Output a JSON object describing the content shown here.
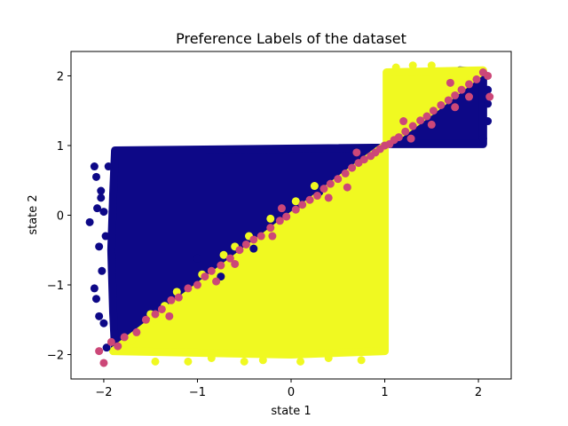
{
  "chart_data": {
    "type": "scatter",
    "title": "Preference Labels of the dataset",
    "xlabel": "state 1",
    "ylabel": "state 2",
    "xlim": [
      -2.35,
      2.35
    ],
    "ylim": [
      -2.35,
      2.35
    ],
    "xticks": [
      -2,
      -1,
      0,
      1,
      2
    ],
    "yticks": [
      -2,
      -1,
      0,
      1,
      2
    ],
    "grid": false,
    "legend": "none",
    "series": [
      {
        "color": "#0d0887",
        "regions": [
          {
            "shape": "polygon",
            "vertices": [
              [
                -1.88,
                0.93
              ],
              [
                1.0,
                0.97
              ],
              [
                1.0,
                1.0
              ],
              [
                -1.88,
                -1.92
              ],
              [
                -1.9,
                -1.4
              ],
              [
                -1.92,
                -0.5
              ],
              [
                -1.9,
                0.3
              ]
            ]
          },
          {
            "shape": "polygon",
            "vertices": [
              [
                1.02,
                1.02
              ],
              [
                2.05,
                1.02
              ],
              [
                2.05,
                2.05
              ],
              [
                1.8,
                2.08
              ]
            ]
          }
        ],
        "points": [
          [
            -2.15,
            -0.1
          ],
          [
            -2.08,
            0.55
          ],
          [
            -2.1,
            -1.05
          ],
          [
            -2.05,
            -0.45
          ],
          [
            -2.07,
            0.1
          ],
          [
            -2.0,
            -1.55
          ],
          [
            -2.03,
            0.35
          ],
          [
            -2.1,
            0.7
          ],
          [
            -2.02,
            -0.8
          ],
          [
            -2.08,
            -1.2
          ],
          [
            -1.97,
            -1.9
          ],
          [
            -2.0,
            0.05
          ],
          [
            -2.05,
            -1.45
          ],
          [
            -1.95,
            0.7
          ],
          [
            -1.98,
            -0.3
          ],
          [
            -2.03,
            0.25
          ],
          [
            -0.75,
            -0.88
          ],
          [
            -1.0,
            -0.62
          ],
          [
            0.05,
            0.12
          ],
          [
            0.3,
            0.33
          ],
          [
            -0.4,
            -0.48
          ],
          [
            2.1,
            1.6
          ],
          [
            2.1,
            1.8
          ],
          [
            2.05,
            1.1
          ],
          [
            2.1,
            1.35
          ]
        ]
      },
      {
        "color": "#f0f921",
        "regions": [
          {
            "shape": "polygon",
            "vertices": [
              [
                -1.9,
                -1.95
              ],
              [
                1.0,
                1.0
              ],
              [
                1.0,
                -1.95
              ],
              [
                0.0,
                -2.0
              ]
            ]
          },
          {
            "shape": "polygon",
            "vertices": [
              [
                1.02,
                1.02
              ],
              [
                1.02,
                2.05
              ],
              [
                2.05,
                2.08
              ],
              [
                1.5,
                1.5
              ]
            ]
          }
        ],
        "points": [
          [
            -1.1,
            -2.1
          ],
          [
            -0.5,
            -2.1
          ],
          [
            0.1,
            -2.1
          ],
          [
            0.75,
            -2.08
          ],
          [
            -0.85,
            -2.05
          ],
          [
            -0.3,
            -2.08
          ],
          [
            0.4,
            -2.05
          ],
          [
            -1.45,
            -2.1
          ],
          [
            1.3,
            2.15
          ],
          [
            1.5,
            2.15
          ],
          [
            1.12,
            2.12
          ],
          [
            -1.5,
            -1.42
          ],
          [
            -1.22,
            -1.1
          ],
          [
            -0.95,
            -0.85
          ],
          [
            -0.72,
            -0.57
          ],
          [
            -0.45,
            -0.3
          ],
          [
            -0.22,
            -0.05
          ],
          [
            0.05,
            0.2
          ],
          [
            0.25,
            0.42
          ],
          [
            -0.6,
            -0.45
          ],
          [
            -1.35,
            -1.3
          ],
          [
            -1.7,
            -1.8
          ]
        ]
      },
      {
        "color": "#cc4778",
        "regions": [],
        "points": [
          [
            -1.85,
            -1.88
          ],
          [
            -1.78,
            -1.75
          ],
          [
            -1.65,
            -1.68
          ],
          [
            -1.55,
            -1.5
          ],
          [
            -1.45,
            -1.42
          ],
          [
            -1.38,
            -1.35
          ],
          [
            -1.28,
            -1.22
          ],
          [
            -1.2,
            -1.18
          ],
          [
            -1.1,
            -1.05
          ],
          [
            -1.0,
            -1.0
          ],
          [
            -0.92,
            -0.88
          ],
          [
            -0.85,
            -0.8
          ],
          [
            -0.75,
            -0.72
          ],
          [
            -0.65,
            -0.62
          ],
          [
            -0.55,
            -0.5
          ],
          [
            -0.48,
            -0.42
          ],
          [
            -0.4,
            -0.35
          ],
          [
            -0.32,
            -0.3
          ],
          [
            -0.22,
            -0.18
          ],
          [
            -0.12,
            -0.08
          ],
          [
            -0.05,
            -0.02
          ],
          [
            0.05,
            0.08
          ],
          [
            0.12,
            0.15
          ],
          [
            0.2,
            0.22
          ],
          [
            0.28,
            0.28
          ],
          [
            0.35,
            0.38
          ],
          [
            0.42,
            0.45
          ],
          [
            0.5,
            0.52
          ],
          [
            0.58,
            0.6
          ],
          [
            0.65,
            0.68
          ],
          [
            0.72,
            0.75
          ],
          [
            0.78,
            0.8
          ],
          [
            0.85,
            0.85
          ],
          [
            0.9,
            0.9
          ],
          [
            0.95,
            0.95
          ],
          [
            1.0,
            1.0
          ],
          [
            1.05,
            1.02
          ],
          [
            1.1,
            1.08
          ],
          [
            1.15,
            1.12
          ],
          [
            1.22,
            1.2
          ],
          [
            1.3,
            1.28
          ],
          [
            1.38,
            1.36
          ],
          [
            1.45,
            1.42
          ],
          [
            1.52,
            1.5
          ],
          [
            1.6,
            1.58
          ],
          [
            1.68,
            1.65
          ],
          [
            1.75,
            1.72
          ],
          [
            1.82,
            1.8
          ],
          [
            1.9,
            1.88
          ],
          [
            1.98,
            1.95
          ],
          [
            2.05,
            2.05
          ],
          [
            2.1,
            2.0
          ],
          [
            1.7,
            1.9
          ],
          [
            1.9,
            1.7
          ],
          [
            -2.0,
            -2.12
          ],
          [
            -2.05,
            -1.95
          ],
          [
            -1.92,
            -1.82
          ],
          [
            1.28,
            1.1
          ],
          [
            1.5,
            1.3
          ],
          [
            0.6,
            0.4
          ],
          [
            0.4,
            0.25
          ],
          [
            -0.2,
            -0.3
          ],
          [
            -0.8,
            -0.95
          ],
          [
            -1.3,
            -1.45
          ],
          [
            -0.1,
            0.1
          ],
          [
            0.7,
            0.9
          ],
          [
            -0.6,
            -0.7
          ],
          [
            1.2,
            1.35
          ],
          [
            1.75,
            1.55
          ],
          [
            2.12,
            1.7
          ]
        ]
      }
    ]
  }
}
